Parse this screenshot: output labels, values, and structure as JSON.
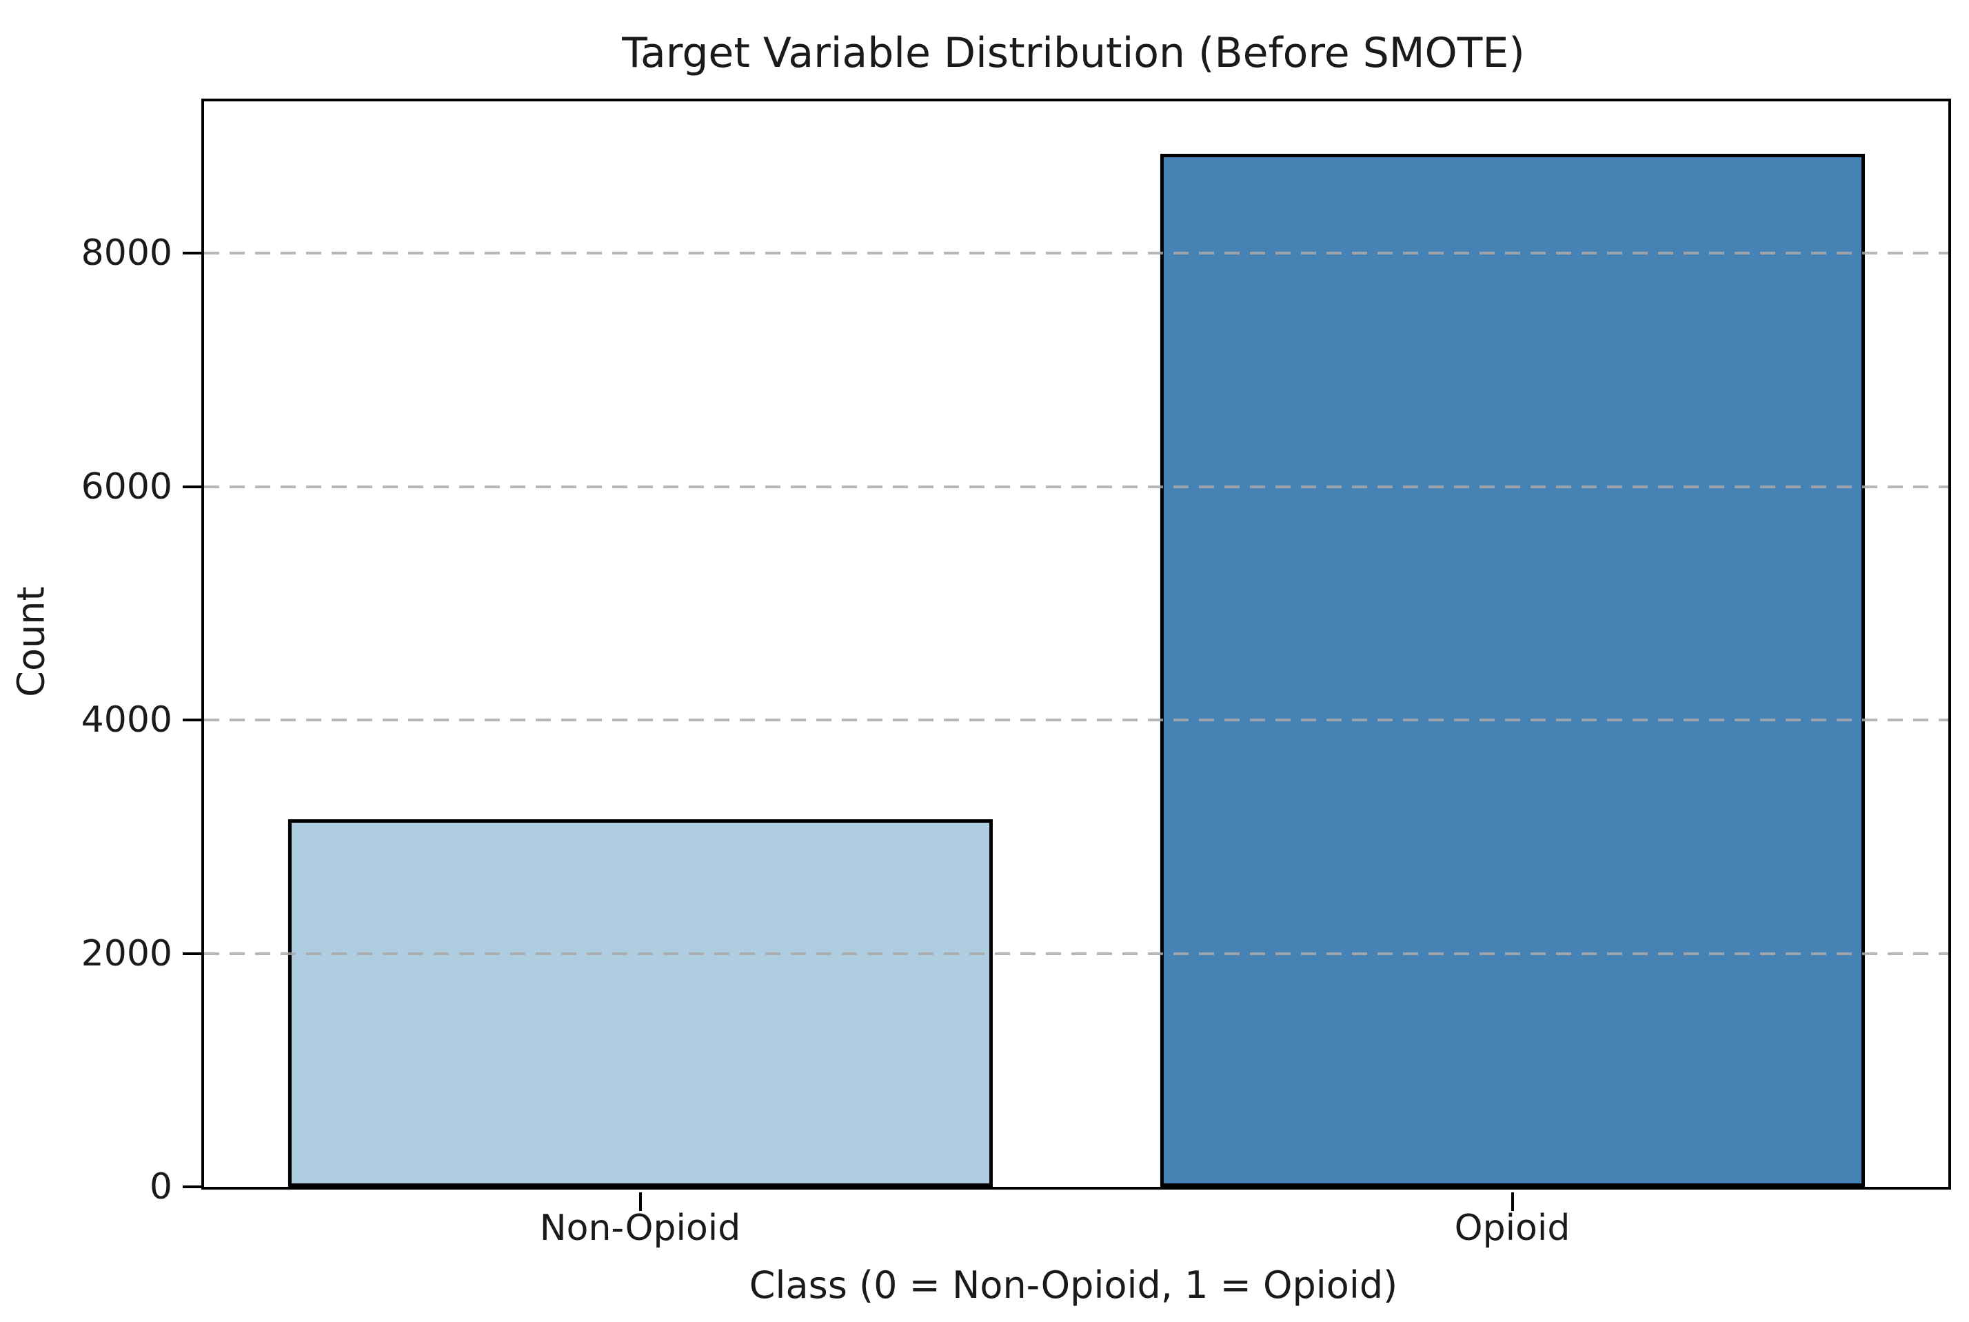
{
  "chart_data": {
    "type": "bar",
    "title": "Target Variable Distribution (Before SMOTE)",
    "xlabel": "Class (0 = Non-Opioid, 1 = Opioid)",
    "ylabel": "Count",
    "categories": [
      "Non-Opioid",
      "Opioid"
    ],
    "values": [
      3150,
      8850
    ],
    "ylim": [
      0,
      9300
    ],
    "yticks": [
      0,
      2000,
      4000,
      6000,
      8000
    ],
    "bar_colors": [
      "#AFCDE1",
      "#4682B4"
    ],
    "bar_edge_color": "#000000",
    "bar_width_pct": 40.4,
    "grid": {
      "visible": true,
      "axis": "y",
      "linestyle": "dashed",
      "color": "rgba(170,170,170,0.85)"
    },
    "legend": "none"
  }
}
